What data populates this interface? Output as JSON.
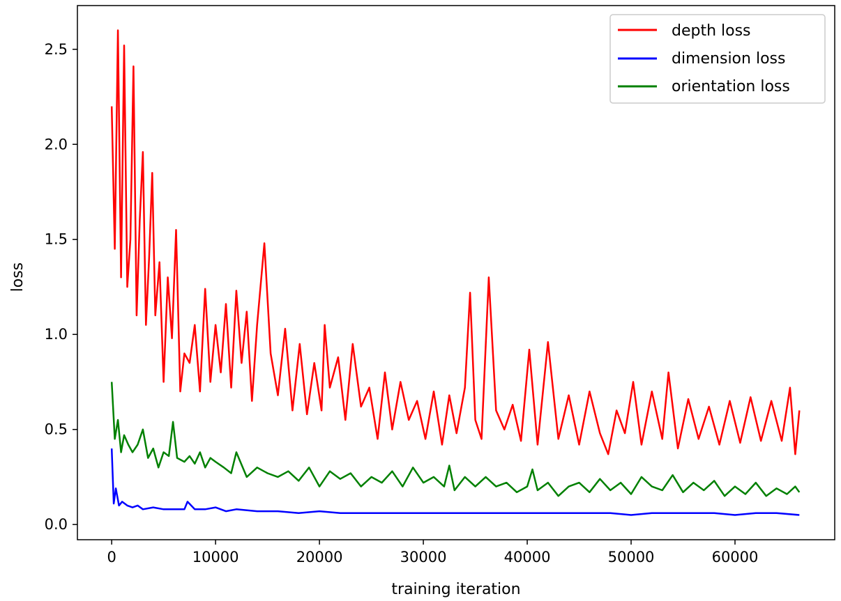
{
  "chart_data": {
    "type": "line",
    "xlabel": "training iteration",
    "ylabel": "loss",
    "xlim": [
      -3300,
      69600
    ],
    "ylim": [
      -0.08,
      2.73
    ],
    "xticks": [
      0,
      10000,
      20000,
      30000,
      40000,
      50000,
      60000
    ],
    "xtick_labels": [
      "0",
      "10000",
      "20000",
      "30000",
      "40000",
      "50000",
      "60000"
    ],
    "yticks": [
      0.0,
      0.5,
      1.0,
      1.5,
      2.0,
      2.5
    ],
    "ytick_labels": [
      "0.0",
      "0.5",
      "1.0",
      "1.5",
      "2.0",
      "2.5"
    ],
    "grid": false,
    "legend_position": "top-right",
    "series": [
      {
        "name": "depth loss",
        "color": "#ff0000",
        "x": [
          0,
          300,
          600,
          900,
          1200,
          1500,
          1800,
          2100,
          2400,
          2700,
          3000,
          3300,
          3600,
          3900,
          4200,
          4600,
          5000,
          5400,
          5800,
          6200,
          6600,
          7000,
          7500,
          8000,
          8500,
          9000,
          9500,
          10000,
          10500,
          11000,
          11500,
          12000,
          12500,
          13000,
          13500,
          14000,
          14700,
          15300,
          16000,
          16700,
          17400,
          18100,
          18800,
          19500,
          20200,
          20500,
          21000,
          21800,
          22500,
          23200,
          24000,
          24800,
          25600,
          26300,
          27000,
          27800,
          28600,
          29400,
          30200,
          31000,
          31800,
          32500,
          33200,
          34000,
          34500,
          35000,
          35600,
          36300,
          37000,
          37800,
          38600,
          39400,
          40200,
          41000,
          42000,
          43000,
          44000,
          45000,
          46000,
          47000,
          47800,
          48600,
          49400,
          50200,
          51000,
          52000,
          53000,
          53600,
          54500,
          55500,
          56500,
          57500,
          58500,
          59500,
          60500,
          61500,
          62500,
          63500,
          64500,
          65300,
          65800,
          66200
        ],
        "values": [
          2.2,
          1.45,
          2.6,
          1.3,
          2.52,
          1.25,
          1.5,
          2.41,
          1.1,
          1.6,
          1.96,
          1.05,
          1.4,
          1.85,
          1.1,
          1.38,
          0.75,
          1.3,
          0.98,
          1.55,
          0.7,
          0.9,
          0.85,
          1.05,
          0.7,
          1.24,
          0.75,
          1.05,
          0.8,
          1.16,
          0.72,
          1.23,
          0.85,
          1.12,
          0.65,
          1.05,
          1.48,
          0.9,
          0.68,
          1.03,
          0.6,
          0.95,
          0.58,
          0.85,
          0.6,
          1.05,
          0.72,
          0.88,
          0.55,
          0.95,
          0.62,
          0.72,
          0.45,
          0.8,
          0.5,
          0.75,
          0.55,
          0.65,
          0.45,
          0.7,
          0.42,
          0.68,
          0.48,
          0.72,
          1.22,
          0.55,
          0.45,
          1.3,
          0.6,
          0.5,
          0.63,
          0.44,
          0.92,
          0.42,
          0.96,
          0.45,
          0.68,
          0.42,
          0.7,
          0.48,
          0.37,
          0.6,
          0.48,
          0.75,
          0.42,
          0.7,
          0.45,
          0.8,
          0.4,
          0.66,
          0.45,
          0.62,
          0.42,
          0.65,
          0.43,
          0.67,
          0.44,
          0.65,
          0.44,
          0.72,
          0.37,
          0.6
        ]
      },
      {
        "name": "dimension loss",
        "color": "#0000ff",
        "x": [
          0,
          200,
          400,
          700,
          1000,
          1500,
          2000,
          2500,
          3000,
          4000,
          5000,
          6000,
          7000,
          7300,
          8000,
          9000,
          10000,
          11000,
          12000,
          14000,
          16000,
          18000,
          20000,
          22000,
          24000,
          26000,
          28000,
          30000,
          32000,
          34000,
          36000,
          38000,
          40000,
          42000,
          44000,
          46000,
          48000,
          50000,
          52000,
          54000,
          56000,
          58000,
          60000,
          62000,
          64000,
          66200
        ],
        "values": [
          0.4,
          0.11,
          0.19,
          0.1,
          0.12,
          0.1,
          0.09,
          0.1,
          0.08,
          0.09,
          0.08,
          0.08,
          0.08,
          0.12,
          0.08,
          0.08,
          0.09,
          0.07,
          0.08,
          0.07,
          0.07,
          0.06,
          0.07,
          0.06,
          0.06,
          0.06,
          0.06,
          0.06,
          0.06,
          0.06,
          0.06,
          0.06,
          0.06,
          0.06,
          0.06,
          0.06,
          0.06,
          0.05,
          0.06,
          0.06,
          0.06,
          0.06,
          0.05,
          0.06,
          0.06,
          0.05
        ]
      },
      {
        "name": "orientation loss",
        "color": "#008000",
        "x": [
          0,
          300,
          600,
          900,
          1200,
          1600,
          2000,
          2500,
          3000,
          3500,
          4000,
          4500,
          5000,
          5500,
          5900,
          6300,
          7000,
          7500,
          8000,
          8500,
          9000,
          9500,
          10000,
          10800,
          11500,
          12000,
          13000,
          14000,
          15000,
          16000,
          17000,
          18000,
          19000,
          20000,
          21000,
          22000,
          23000,
          24000,
          25000,
          26000,
          27000,
          28000,
          29000,
          30000,
          31000,
          32000,
          32500,
          33000,
          34000,
          35000,
          36000,
          37000,
          38000,
          39000,
          40000,
          40500,
          41000,
          42000,
          43000,
          44000,
          45000,
          46000,
          47000,
          48000,
          49000,
          50000,
          51000,
          52000,
          53000,
          54000,
          55000,
          56000,
          57000,
          58000,
          59000,
          60000,
          61000,
          62000,
          63000,
          64000,
          65000,
          65800,
          66200
        ],
        "values": [
          0.75,
          0.45,
          0.55,
          0.38,
          0.47,
          0.42,
          0.38,
          0.42,
          0.5,
          0.35,
          0.4,
          0.3,
          0.38,
          0.36,
          0.54,
          0.35,
          0.33,
          0.36,
          0.32,
          0.38,
          0.3,
          0.35,
          0.33,
          0.3,
          0.27,
          0.38,
          0.25,
          0.3,
          0.27,
          0.25,
          0.28,
          0.23,
          0.3,
          0.2,
          0.28,
          0.24,
          0.27,
          0.2,
          0.25,
          0.22,
          0.28,
          0.2,
          0.3,
          0.22,
          0.25,
          0.2,
          0.31,
          0.18,
          0.25,
          0.2,
          0.25,
          0.2,
          0.22,
          0.17,
          0.2,
          0.29,
          0.18,
          0.22,
          0.15,
          0.2,
          0.22,
          0.17,
          0.24,
          0.18,
          0.22,
          0.16,
          0.25,
          0.2,
          0.18,
          0.26,
          0.17,
          0.22,
          0.18,
          0.23,
          0.15,
          0.2,
          0.16,
          0.22,
          0.15,
          0.19,
          0.16,
          0.2,
          0.17
        ]
      }
    ]
  }
}
